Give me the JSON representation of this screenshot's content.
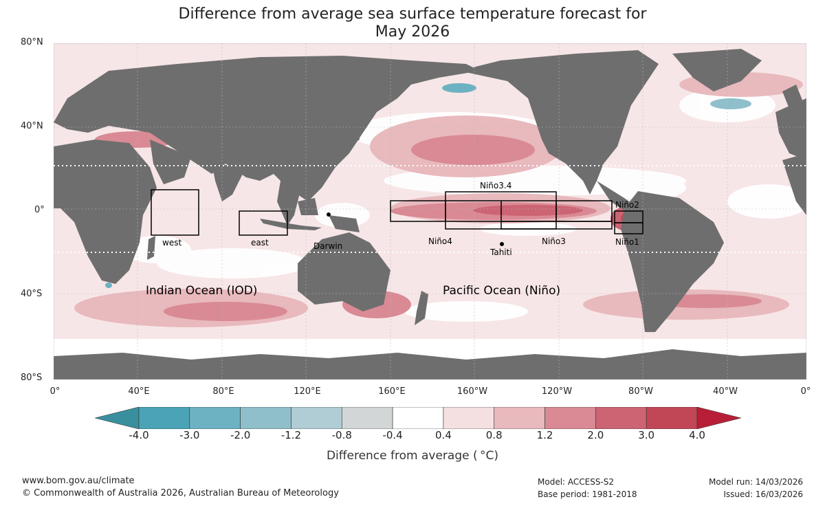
{
  "title_line1": "Difference from average sea surface temperature forecast for",
  "title_line2": "May 2026",
  "lat_labels": [
    "80°N",
    "40°N",
    "0°",
    "40°S",
    "80°S"
  ],
  "lon_labels": [
    "0°",
    "40°E",
    "80°E",
    "120°E",
    "160°E",
    "160°W",
    "120°W",
    "80°W",
    "40°W",
    "0°"
  ],
  "regions": {
    "west": "west",
    "east": "east",
    "nino34": "Niño3.4",
    "nino4": "Niño4",
    "nino3": "Niño3",
    "nino2": "Niño2",
    "nino1": "Niño1"
  },
  "places": {
    "darwin": "Darwin",
    "tahiti": "Tahiti"
  },
  "ocean_labels": {
    "indian": "Indian Ocean (IOD)",
    "pacific": "Pacific Ocean (Niño)"
  },
  "colorbar": {
    "ticks": [
      "-4.0",
      "-3.0",
      "-2.0",
      "-1.2",
      "-0.8",
      "-0.4",
      "0.4",
      "0.8",
      "1.2",
      "2.0",
      "3.0",
      "4.0"
    ],
    "colors": [
      "#3a8f9e",
      "#4aa3b6",
      "#6db2c2",
      "#8fbfcb",
      "#b0ccd4",
      "#d2d6d7",
      "#ffffff",
      "#f5e0e1",
      "#e8b9bd",
      "#d98a94",
      "#cc6473",
      "#c24756",
      "#b81e36"
    ],
    "title": "Difference from average ( °C)"
  },
  "colors": {
    "land": "#6e6e6e",
    "warm_strong": "#cc6473",
    "warm_mid": "#d98a94",
    "warm_light": "#e8b9bd",
    "cool": "#6db2c2"
  },
  "footer": {
    "url": "www.bom.gov.au/climate",
    "copyright": "© Commonwealth of Australia 2026, Australian Bureau of Meteorology",
    "model": "Model: ACCESS-S2",
    "base_period": "Base period: 1981-2018",
    "model_run": "Model run: 14/03/2026",
    "issued": "Issued: 16/03/2026"
  }
}
